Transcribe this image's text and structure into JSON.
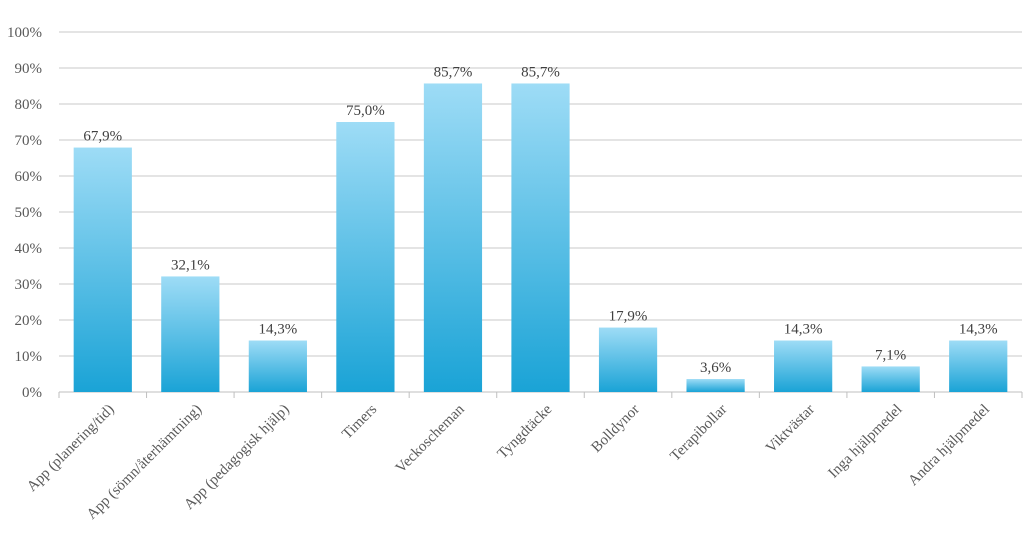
{
  "chart_data": {
    "type": "bar",
    "categories": [
      "App (planering/tid)",
      "App (sömn/återhämtning)",
      "App (pedagogisk hjälp)",
      "Timers",
      "Veckoscheman",
      "Tyngdtäcke",
      "Bolldynor",
      "Terapibollar",
      "Viktvästar",
      "Inga hjälpmedel",
      "Andra hjälpmedel"
    ],
    "values": [
      67.9,
      32.1,
      14.3,
      75.0,
      85.7,
      85.7,
      17.9,
      3.6,
      14.3,
      7.1,
      14.3
    ],
    "data_labels": [
      "67,9%",
      "32,1%",
      "14,3%",
      "75,0%",
      "85,7%",
      "85,7%",
      "17,9%",
      "3,6%",
      "14,3%",
      "7,1%",
      "14,3%"
    ],
    "yticks": [
      "0%",
      "10%",
      "20%",
      "30%",
      "40%",
      "50%",
      "60%",
      "70%",
      "80%",
      "90%",
      "100%"
    ],
    "ylim": [
      0,
      100
    ],
    "grid": true,
    "legend": "none",
    "colors": {
      "bar_top": "#9edcf6",
      "bar_bottom": "#1aa3d6",
      "grid": "#c9c9c9",
      "axis": "#bfbfbf"
    }
  }
}
